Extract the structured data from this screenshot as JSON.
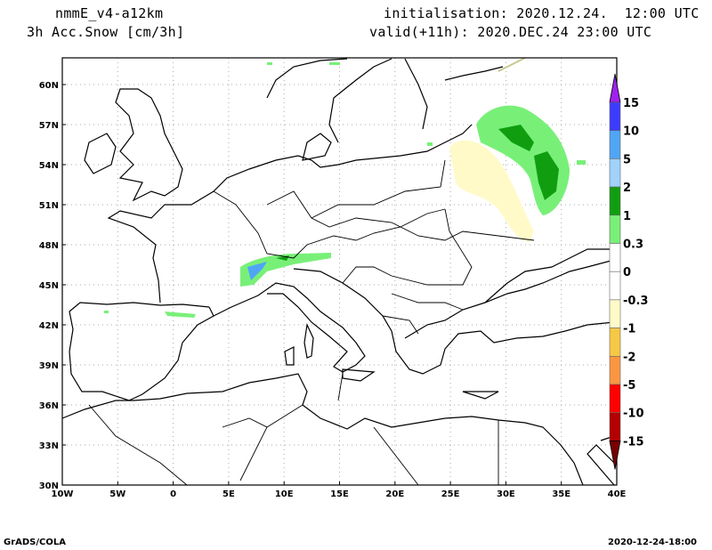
{
  "header": {
    "model": "nmmE_v4-a12km",
    "field": "3h Acc.Snow [cm/3h]",
    "init": "initialisation: 2020.12.24.  12:00 UTC",
    "valid": "valid(+11h): 2020.DEC.24 23:00 UTC"
  },
  "map": {
    "lon_range": [
      -10,
      40
    ],
    "lat_range": [
      30,
      62
    ],
    "lon_ticks": [
      "10W",
      "5W",
      "0",
      "5E",
      "10E",
      "15E",
      "20E",
      "25E",
      "30E",
      "35E",
      "40E"
    ],
    "lat_ticks": [
      "30N",
      "33N",
      "36N",
      "39N",
      "42N",
      "45N",
      "48N",
      "51N",
      "54N",
      "57N",
      "60N"
    ]
  },
  "colorbar": {
    "labels": [
      "15",
      "10",
      "5",
      "2",
      "1",
      "0.3",
      "0",
      "-0.3",
      "-1",
      "-2",
      "-5",
      "-10",
      "-15"
    ],
    "colors": [
      "#a020f0",
      "#3c3cff",
      "#50a5f5",
      "#a0d2fa",
      "#109e10",
      "#78f078",
      "#ffffff",
      "#ffffff",
      "#fffac8",
      "#f5c846",
      "#fa9641",
      "#ff0000",
      "#b40000",
      "#780000"
    ]
  },
  "footer": {
    "left": "GrADS/COLA",
    "right": "2020-12-24-18:00"
  }
}
